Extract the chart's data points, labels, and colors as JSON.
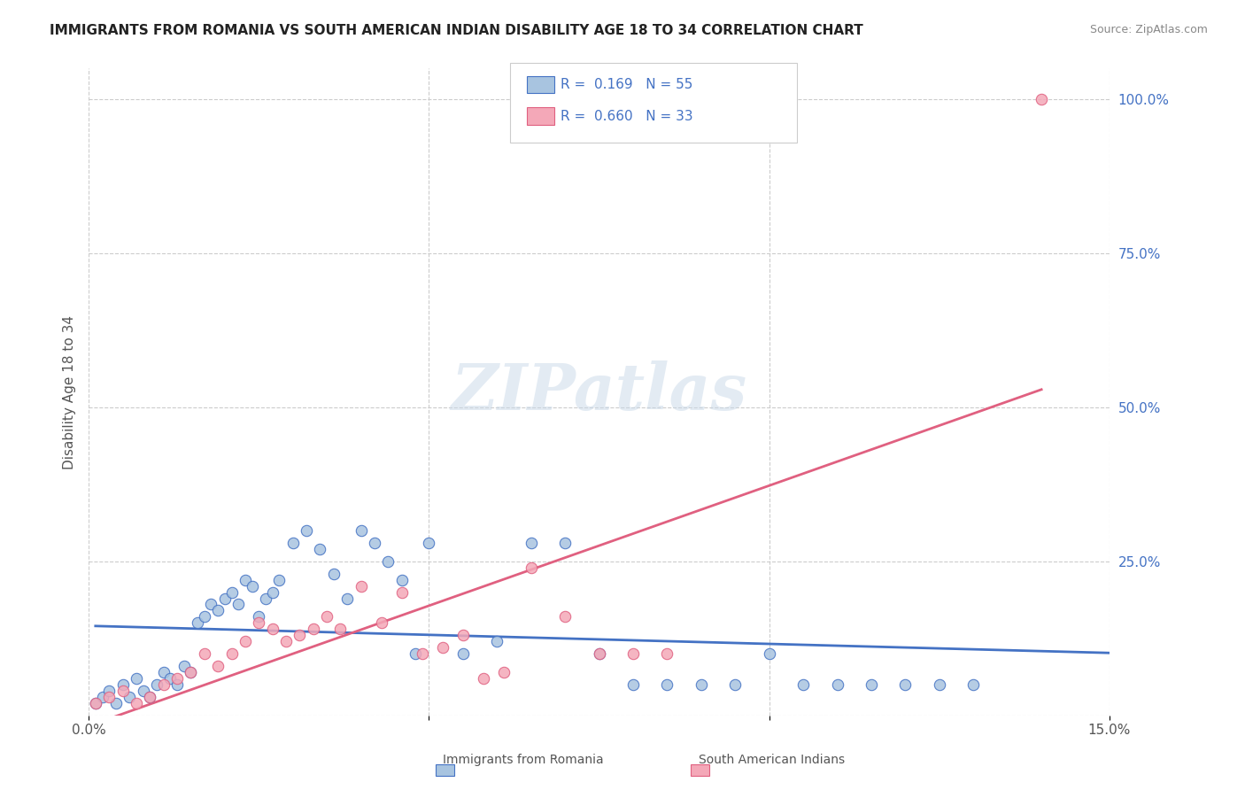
{
  "title": "IMMIGRANTS FROM ROMANIA VS SOUTH AMERICAN INDIAN DISABILITY AGE 18 TO 34 CORRELATION CHART",
  "source": "Source: ZipAtlas.com",
  "xlabel_bottom": "",
  "ylabel": "Disability Age 18 to 34",
  "xlim": [
    0.0,
    0.15
  ],
  "ylim": [
    0.0,
    1.05
  ],
  "xticks": [
    0.0,
    0.03,
    0.06,
    0.09,
    0.12,
    0.15
  ],
  "xticklabels": [
    "0.0%",
    "",
    "",
    "",
    "",
    "15.0%"
  ],
  "yticks_right": [
    0.0,
    0.25,
    0.5,
    0.75,
    1.0
  ],
  "yticklabels_right": [
    "",
    "25.0%",
    "50.0%",
    "75.0%",
    "100.0%"
  ],
  "watermark": "ZIPatlas",
  "legend_r1": "R =  0.169",
  "legend_n1": "N = 55",
  "legend_r2": "R =  0.660",
  "legend_n2": "N = 33",
  "color_romania": "#a8c4e0",
  "color_sam_indian": "#f4a8b8",
  "color_line_romania": "#4472c4",
  "color_line_sam": "#e06080",
  "color_r_value": "#4472c4",
  "scatter_romania_x": [
    0.001,
    0.002,
    0.003,
    0.004,
    0.005,
    0.006,
    0.007,
    0.008,
    0.009,
    0.01,
    0.011,
    0.012,
    0.013,
    0.014,
    0.015,
    0.016,
    0.017,
    0.018,
    0.019,
    0.02,
    0.021,
    0.022,
    0.023,
    0.024,
    0.025,
    0.026,
    0.027,
    0.028,
    0.03,
    0.032,
    0.034,
    0.036,
    0.038,
    0.04,
    0.042,
    0.044,
    0.046,
    0.048,
    0.05,
    0.055,
    0.06,
    0.065,
    0.07,
    0.075,
    0.08,
    0.085,
    0.09,
    0.095,
    0.1,
    0.105,
    0.11,
    0.115,
    0.12,
    0.125,
    0.13
  ],
  "scatter_romania_y": [
    0.02,
    0.03,
    0.04,
    0.02,
    0.05,
    0.03,
    0.06,
    0.04,
    0.03,
    0.05,
    0.07,
    0.06,
    0.05,
    0.08,
    0.07,
    0.15,
    0.16,
    0.18,
    0.17,
    0.19,
    0.2,
    0.18,
    0.22,
    0.21,
    0.16,
    0.19,
    0.2,
    0.22,
    0.28,
    0.3,
    0.27,
    0.23,
    0.19,
    0.3,
    0.28,
    0.25,
    0.22,
    0.1,
    0.28,
    0.1,
    0.12,
    0.28,
    0.28,
    0.1,
    0.05,
    0.05,
    0.05,
    0.05,
    0.1,
    0.05,
    0.05,
    0.05,
    0.05,
    0.05,
    0.05
  ],
  "scatter_sam_x": [
    0.001,
    0.003,
    0.005,
    0.007,
    0.009,
    0.011,
    0.013,
    0.015,
    0.017,
    0.019,
    0.021,
    0.023,
    0.025,
    0.027,
    0.029,
    0.031,
    0.033,
    0.035,
    0.037,
    0.04,
    0.043,
    0.046,
    0.049,
    0.052,
    0.055,
    0.058,
    0.061,
    0.065,
    0.07,
    0.075,
    0.08,
    0.085,
    0.14
  ],
  "scatter_sam_y": [
    0.02,
    0.03,
    0.04,
    0.02,
    0.03,
    0.05,
    0.06,
    0.07,
    0.1,
    0.08,
    0.1,
    0.12,
    0.15,
    0.14,
    0.12,
    0.13,
    0.14,
    0.16,
    0.14,
    0.21,
    0.15,
    0.2,
    0.1,
    0.11,
    0.13,
    0.06,
    0.07,
    0.24,
    0.16,
    0.1,
    0.1,
    0.1,
    1.0
  ]
}
